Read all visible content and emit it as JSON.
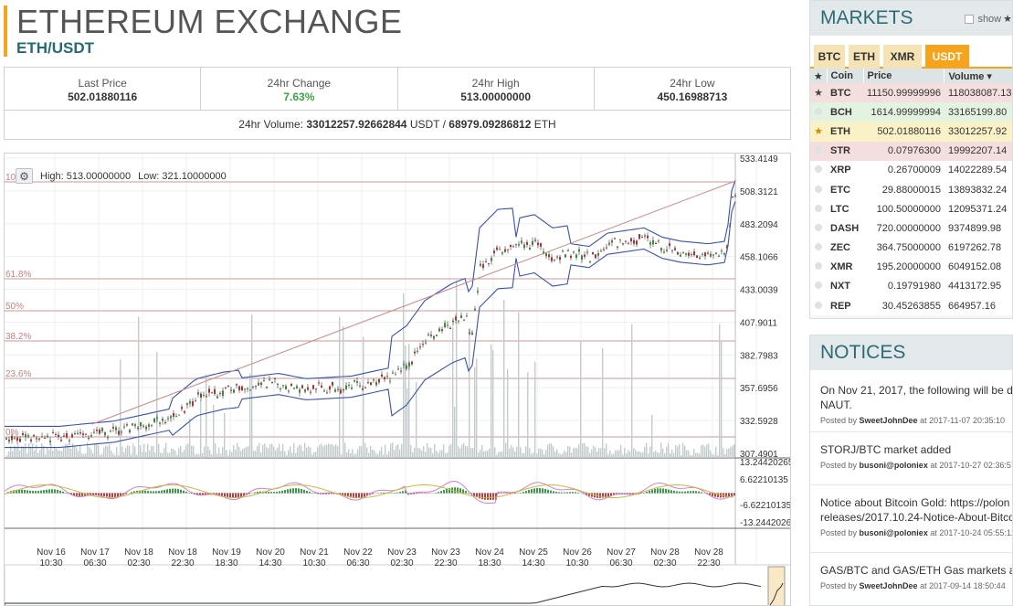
{
  "header": {
    "title": "ETHEREUM EXCHANGE",
    "pair": "ETH/USDT"
  },
  "stats": [
    {
      "label": "Last Price",
      "value": "502.01880116"
    },
    {
      "label": "24hr Change",
      "value": "7.63%"
    },
    {
      "label": "24hr High",
      "value": "513.00000000"
    },
    {
      "label": "24hr Low",
      "value": "450.16988713"
    }
  ],
  "volume": {
    "label": "24hr Volume:",
    "usdt": "33012257.92662844",
    "usdt_unit": "USDT /",
    "eth": "68979.09286812",
    "eth_unit": "ETH"
  },
  "chart": {
    "high_label": "High: 513.00000000",
    "low_label": "Low: 321.10000000",
    "gear_icon": "gear-icon",
    "price_ticks": [
      "533.4149",
      "508.3121",
      "483.2094",
      "458.1066",
      "433.0039",
      "407.9011",
      "382.7983",
      "357.6956",
      "332.5928",
      "307.4901"
    ],
    "fib_labels": [
      "100%",
      "61.8%",
      "50%",
      "38.2%",
      "23.6%",
      "0%"
    ],
    "macd_ticks": [
      "13.24420265",
      "6.62210135",
      "-6.62210135",
      "-13.2442026"
    ],
    "time_labels": [
      [
        "Nov 16",
        "10:30"
      ],
      [
        "Nov 17",
        "06:30"
      ],
      [
        "Nov 18",
        "02:30"
      ],
      [
        "Nov 18",
        "22:30"
      ],
      [
        "Nov 19",
        "18:30"
      ],
      [
        "Nov 20",
        "14:30"
      ],
      [
        "Nov 21",
        "10:30"
      ],
      [
        "Nov 22",
        "06:30"
      ],
      [
        "Nov 23",
        "02:30"
      ],
      [
        "Nov 23",
        "22:30"
      ],
      [
        "Nov 24",
        "18:30"
      ],
      [
        "Nov 25",
        "14:30"
      ],
      [
        "Nov 26",
        "10:30"
      ],
      [
        "Nov 27",
        "06:30"
      ],
      [
        "Nov 28",
        "02:30"
      ],
      [
        "Nov 28",
        "22:30"
      ]
    ]
  },
  "markets": {
    "title": "MARKETS",
    "show_label": "show",
    "tabs": [
      "BTC",
      "ETH",
      "XMR",
      "USDT"
    ],
    "columns": [
      "Coin",
      "Price",
      "Volume ▾"
    ],
    "rows": [
      {
        "star": "★",
        "coin": "BTC",
        "price": "11150.99999996",
        "volume": "118038087.13",
        "style": "red"
      },
      {
        "star": "",
        "coin": "BCH",
        "price": "1614.99999994",
        "volume": "33165199.80",
        "style": "green"
      },
      {
        "star": "★",
        "coin": "ETH",
        "price": "502.01880116",
        "volume": "33012257.92",
        "style": "sel"
      },
      {
        "star": "",
        "coin": "STR",
        "price": "0.07976300",
        "volume": "19992207.14",
        "style": "red"
      },
      {
        "star": "",
        "coin": "XRP",
        "price": "0.26700009",
        "volume": "14022289.54",
        "style": "alt"
      },
      {
        "star": "",
        "coin": "ETC",
        "price": "29.88000015",
        "volume": "13893832.24",
        "style": "alt"
      },
      {
        "star": "",
        "coin": "LTC",
        "price": "100.50000000",
        "volume": "12095371.24",
        "style": "alt"
      },
      {
        "star": "",
        "coin": "DASH",
        "price": "720.00000000",
        "volume": "9374899.98",
        "style": "alt"
      },
      {
        "star": "",
        "coin": "ZEC",
        "price": "364.75000000",
        "volume": "6197262.78",
        "style": "alt"
      },
      {
        "star": "",
        "coin": "XMR",
        "price": "195.20000000",
        "volume": "6049152.08",
        "style": "alt"
      },
      {
        "star": "",
        "coin": "NXT",
        "price": "0.19791980",
        "volume": "4413172.95",
        "style": "alt"
      },
      {
        "star": "",
        "coin": "REP",
        "price": "30.45263855",
        "volume": "664957.16",
        "style": "alt"
      }
    ]
  },
  "notices": {
    "title": "NOTICES",
    "posted_by": "Posted by",
    "at": "at",
    "items": [
      {
        "text": "On Nov 21, 2017, the following will be de",
        "text2": "NAUT.",
        "author": "SweetJohnDee",
        "time": "2017-11-07 20:35:10"
      },
      {
        "text": "STORJ/BTC market added",
        "text2": "",
        "author": "busoni@poloniex",
        "time": "2017-10-27 02:36:57"
      },
      {
        "text": "Notice about Bitcoin Gold: https://polon",
        "text2": "releases/2017.10.24-Notice-About-Bitco",
        "author": "busoni@poloniex",
        "time": "2017-10-24 05:55:12"
      },
      {
        "text": "GAS/BTC and GAS/ETH Gas markets ac",
        "text2": "",
        "author": "SweetJohnDee",
        "time": "2017-09-14 18:50:44"
      }
    ]
  }
}
